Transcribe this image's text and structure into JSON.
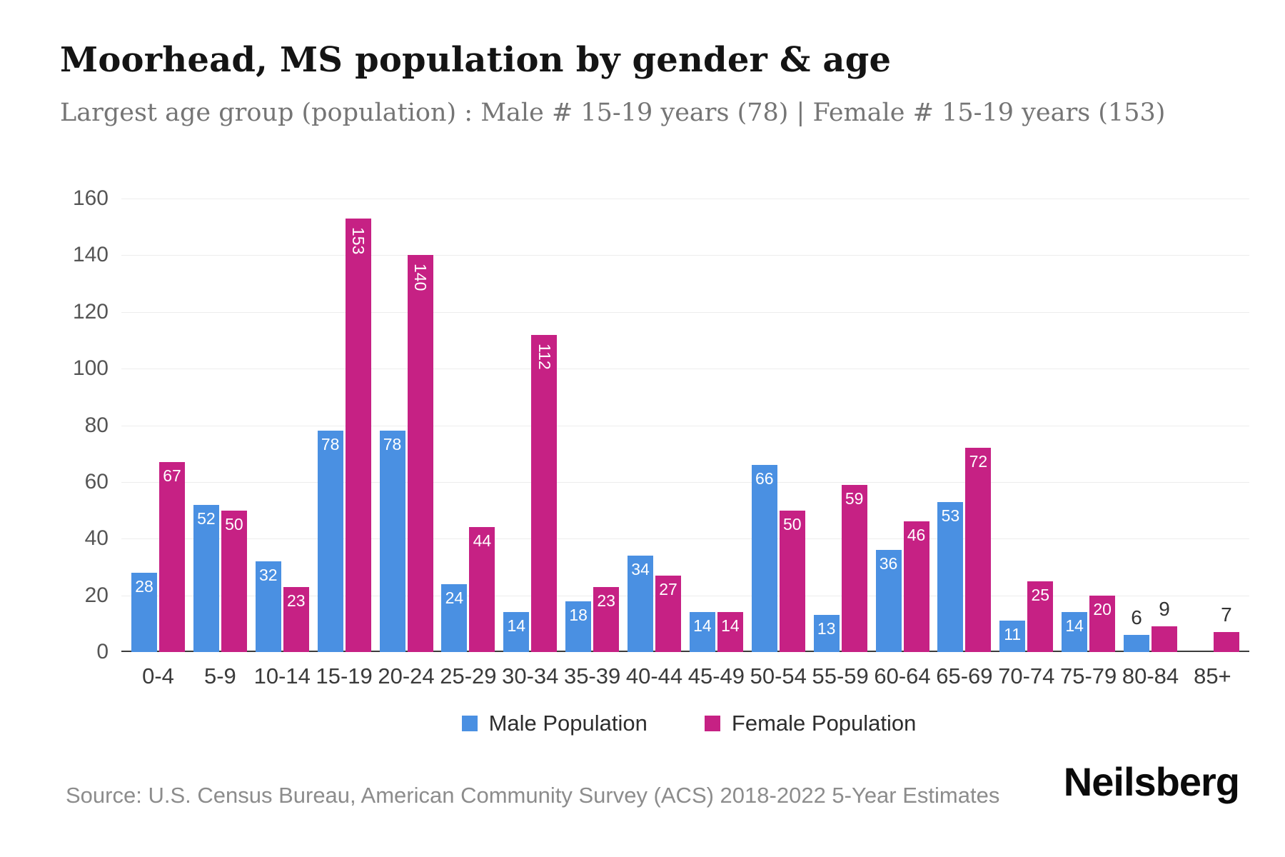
{
  "header": {
    "title": "Moorhead, MS population by gender & age",
    "subtitle": "Largest age group (population) : Male # 15-19 years (78) | Female # 15-19 years (153)"
  },
  "chart_data": {
    "type": "bar",
    "title": "Moorhead, MS population by gender & age",
    "categories": [
      "0-4",
      "5-9",
      "10-14",
      "15-19",
      "20-24",
      "25-29",
      "30-34",
      "35-39",
      "40-44",
      "45-49",
      "50-54",
      "55-59",
      "60-64",
      "65-69",
      "70-74",
      "75-79",
      "80-84",
      "85+"
    ],
    "series": [
      {
        "key": "male",
        "name": "Male Population",
        "color": "#4a90e2",
        "values": [
          28,
          52,
          32,
          78,
          78,
          24,
          14,
          18,
          34,
          14,
          66,
          13,
          36,
          53,
          11,
          14,
          6,
          0
        ]
      },
      {
        "key": "female",
        "name": "Female Population",
        "color": "#c62184",
        "values": [
          67,
          50,
          23,
          153,
          140,
          44,
          112,
          23,
          27,
          14,
          50,
          59,
          46,
          72,
          25,
          20,
          9,
          7
        ]
      }
    ],
    "xlabel": "",
    "ylabel": "",
    "ylim": [
      0,
      160
    ],
    "yticks": [
      0,
      20,
      40,
      60,
      80,
      100,
      120,
      140,
      160
    ],
    "grid": true,
    "legend_position": "bottom"
  },
  "footer": {
    "source": "Source: U.S. Census Bureau, American Community Survey (ACS) 2018-2022 5-Year Estimates",
    "brand": "Neilsberg"
  }
}
